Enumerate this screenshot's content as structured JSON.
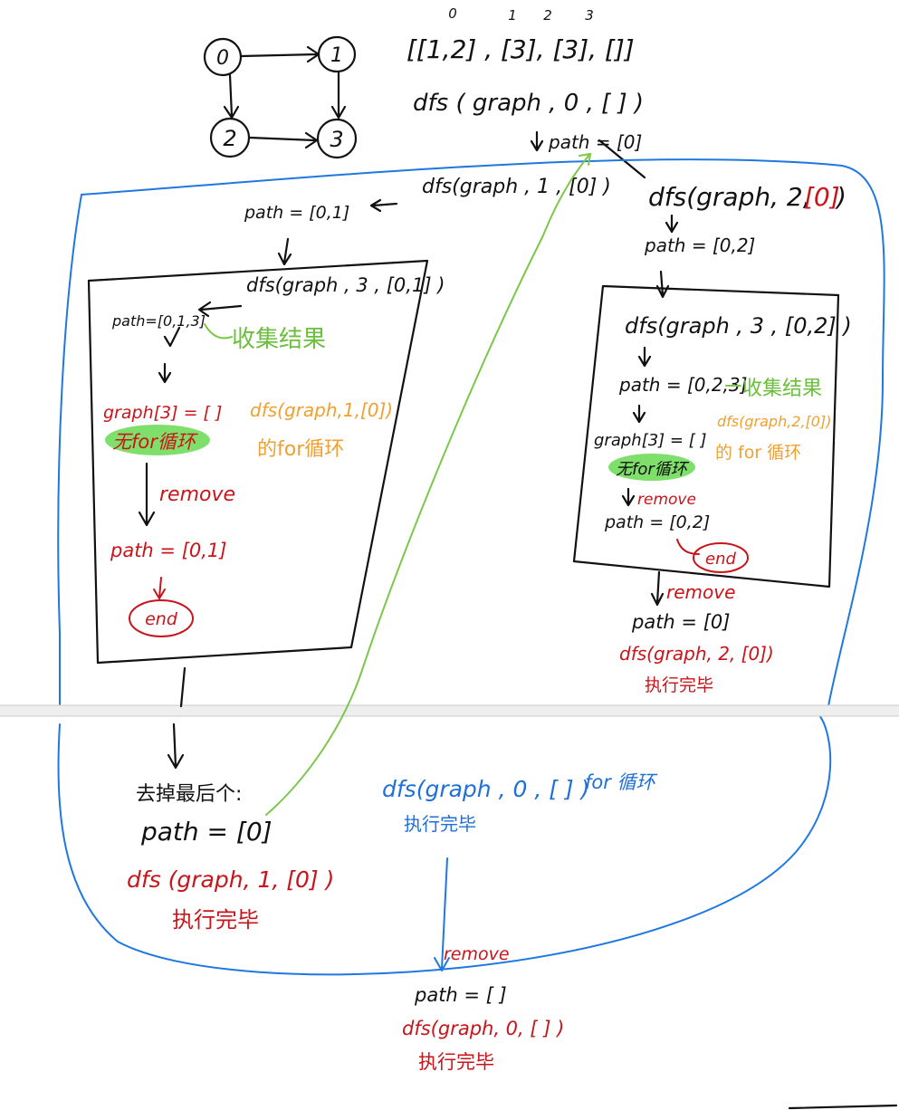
{
  "graph": {
    "nodes": [
      "0",
      "1",
      "2",
      "3"
    ],
    "index_labels": [
      "0",
      "1",
      "2",
      "3"
    ],
    "adjacency_text": "[[1,2] , [3], [3], []]"
  },
  "root": {
    "call": "dfs ( graph , 0 , [ ] )",
    "path": "path = [0]"
  },
  "left": {
    "call": "dfs(graph , 1 , [0] )",
    "path": "path = [0,1]",
    "inner_call": "dfs(graph , 3 , [0,1] )",
    "inner_path": "path=[0,1,3]",
    "collect": "收集结果",
    "graph_empty": "graph[3] = [ ]",
    "no_loop": "无for循环",
    "remove": "remove",
    "after_remove": "path = [0,1]",
    "end": "end",
    "for_loop_ref": "dfs(graph,1,[0])",
    "for_loop_ref2": "的for循环",
    "remove_last": "去掉最后个:",
    "path_after": "path = [0]",
    "done_call": "dfs (graph, 1, [0] )",
    "done": "执行完毕"
  },
  "right": {
    "call_prefix": "dfs(graph, 2, ",
    "call_arg": "[0]",
    "call_suffix": ")",
    "path": "path = [0,2]",
    "inner_call": "dfs(graph , 3 , [0,2] )",
    "inner_path": "path = [0,2,3]",
    "collect": "收集结果",
    "graph_empty": "graph[3] = [ ]",
    "no_loop": "无for循环",
    "remove": "remove",
    "after_remove": "path = [0,2]",
    "end": "end",
    "for_loop_ref": "dfs(graph,2,[0])",
    "for_loop_ref2": "的 for 循环",
    "outer_remove": "remove",
    "path_after": "path = [0]",
    "done_call": "dfs(graph, 2, [0])",
    "done": "执行完毕"
  },
  "root_done": {
    "call": "dfs(graph , 0 , [ ] )",
    "for_loop": "for 循环",
    "done": "执行完毕",
    "remove": "remove",
    "path": "path = [ ]",
    "final_call": "dfs(graph, 0, [ ] )",
    "final_done": "执行完毕"
  },
  "colors": {
    "ink": "#111111",
    "red": "#c8151b",
    "green": "#6cbf3c",
    "orange": "#f0a030",
    "blue": "#1f78e0",
    "highlight": "#7ee06a"
  }
}
